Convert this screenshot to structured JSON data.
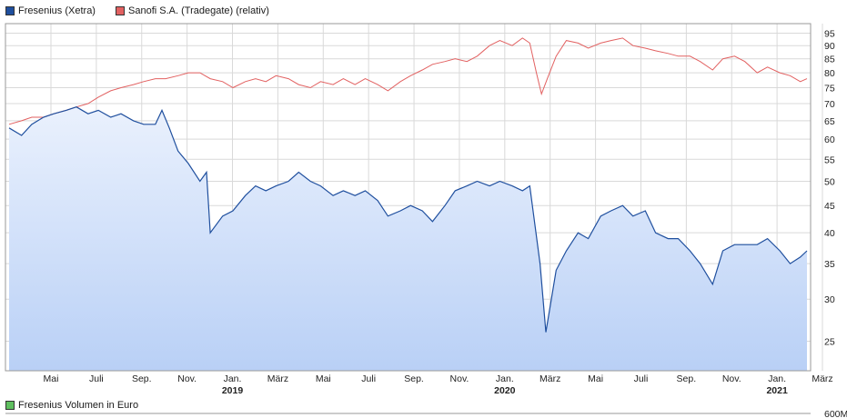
{
  "legend": {
    "series1": "Fresenius (Xetra)",
    "series2": "Sanofi S.A. (Tradegate) (relativ)",
    "volume": "Fresenius Volumen in Euro"
  },
  "colors": {
    "fresenius": "#1f4f9e",
    "sanofi": "#e26161",
    "volume": "#5fbf5f",
    "fill_top": "#eaf1fd",
    "fill_bottom": "#b9d0f6",
    "grid": "#d9d9d9"
  },
  "chart_data": {
    "type": "line",
    "scale": "log",
    "ylim": [
      22,
      99
    ],
    "y_ticks": [
      25,
      30,
      35,
      40,
      45,
      50,
      55,
      60,
      65,
      70,
      75,
      80,
      85,
      90,
      95
    ],
    "x_ticks": [
      {
        "label": "Mai",
        "year": ""
      },
      {
        "label": "Juli",
        "year": ""
      },
      {
        "label": "Sep.",
        "year": ""
      },
      {
        "label": "Nov.",
        "year": ""
      },
      {
        "label": "Jan.",
        "year": "2019"
      },
      {
        "label": "März",
        "year": ""
      },
      {
        "label": "Mai",
        "year": ""
      },
      {
        "label": "Juli",
        "year": ""
      },
      {
        "label": "Sep.",
        "year": ""
      },
      {
        "label": "Nov.",
        "year": ""
      },
      {
        "label": "Jan.",
        "year": "2020"
      },
      {
        "label": "März",
        "year": ""
      },
      {
        "label": "Mai",
        "year": ""
      },
      {
        "label": "Juli",
        "year": ""
      },
      {
        "label": "Sep.",
        "year": ""
      },
      {
        "label": "Nov.",
        "year": ""
      },
      {
        "label": "Jan.",
        "year": "2021"
      },
      {
        "label": "März",
        "year": ""
      }
    ],
    "series": [
      {
        "name": "Fresenius (Xetra)",
        "points": [
          [
            "2018-03-15",
            63
          ],
          [
            "2018-04-01",
            61
          ],
          [
            "2018-04-15",
            64
          ],
          [
            "2018-05-01",
            66
          ],
          [
            "2018-05-15",
            67
          ],
          [
            "2018-06-01",
            68
          ],
          [
            "2018-06-15",
            69
          ],
          [
            "2018-07-01",
            67
          ],
          [
            "2018-07-15",
            68
          ],
          [
            "2018-08-01",
            66
          ],
          [
            "2018-08-15",
            67
          ],
          [
            "2018-09-01",
            65
          ],
          [
            "2018-09-15",
            64
          ],
          [
            "2018-10-01",
            64
          ],
          [
            "2018-10-10",
            68
          ],
          [
            "2018-10-20",
            63
          ],
          [
            "2018-11-01",
            57
          ],
          [
            "2018-11-15",
            54
          ],
          [
            "2018-12-01",
            50
          ],
          [
            "2018-12-10",
            52
          ],
          [
            "2018-12-15",
            40
          ],
          [
            "2019-01-01",
            43
          ],
          [
            "2019-01-15",
            44
          ],
          [
            "2019-02-01",
            47
          ],
          [
            "2019-02-15",
            49
          ],
          [
            "2019-03-01",
            48
          ],
          [
            "2019-03-15",
            49
          ],
          [
            "2019-04-01",
            50
          ],
          [
            "2019-04-15",
            52
          ],
          [
            "2019-05-01",
            50
          ],
          [
            "2019-05-15",
            49
          ],
          [
            "2019-06-01",
            47
          ],
          [
            "2019-06-15",
            48
          ],
          [
            "2019-07-01",
            47
          ],
          [
            "2019-07-15",
            48
          ],
          [
            "2019-08-01",
            46
          ],
          [
            "2019-08-15",
            43
          ],
          [
            "2019-09-01",
            44
          ],
          [
            "2019-09-15",
            45
          ],
          [
            "2019-10-01",
            44
          ],
          [
            "2019-10-15",
            42
          ],
          [
            "2019-11-01",
            45
          ],
          [
            "2019-11-15",
            48
          ],
          [
            "2019-12-01",
            49
          ],
          [
            "2019-12-15",
            50
          ],
          [
            "2020-01-01",
            49
          ],
          [
            "2020-01-15",
            50
          ],
          [
            "2020-02-01",
            49
          ],
          [
            "2020-02-15",
            48
          ],
          [
            "2020-02-25",
            49
          ],
          [
            "2020-03-10",
            35
          ],
          [
            "2020-03-18",
            26
          ],
          [
            "2020-04-01",
            34
          ],
          [
            "2020-04-15",
            37
          ],
          [
            "2020-05-01",
            40
          ],
          [
            "2020-05-15",
            39
          ],
          [
            "2020-06-01",
            43
          ],
          [
            "2020-06-15",
            44
          ],
          [
            "2020-07-01",
            45
          ],
          [
            "2020-07-15",
            43
          ],
          [
            "2020-08-01",
            44
          ],
          [
            "2020-08-15",
            40
          ],
          [
            "2020-09-01",
            39
          ],
          [
            "2020-09-15",
            39
          ],
          [
            "2020-10-01",
            37
          ],
          [
            "2020-10-15",
            35
          ],
          [
            "2020-11-01",
            32
          ],
          [
            "2020-11-15",
            37
          ],
          [
            "2020-12-01",
            38
          ],
          [
            "2020-12-15",
            38
          ],
          [
            "2021-01-01",
            38
          ],
          [
            "2021-01-15",
            39
          ],
          [
            "2021-02-01",
            37
          ],
          [
            "2021-02-15",
            35
          ],
          [
            "2021-03-01",
            36
          ],
          [
            "2021-03-10",
            37
          ]
        ]
      },
      {
        "name": "Sanofi S.A. (Tradegate) (relativ)",
        "points": [
          [
            "2018-03-15",
            64
          ],
          [
            "2018-04-01",
            65
          ],
          [
            "2018-04-15",
            66
          ],
          [
            "2018-05-01",
            66
          ],
          [
            "2018-05-15",
            67
          ],
          [
            "2018-06-01",
            68
          ],
          [
            "2018-06-15",
            69
          ],
          [
            "2018-07-01",
            70
          ],
          [
            "2018-07-15",
            72
          ],
          [
            "2018-08-01",
            74
          ],
          [
            "2018-08-15",
            75
          ],
          [
            "2018-09-01",
            76
          ],
          [
            "2018-09-15",
            77
          ],
          [
            "2018-10-01",
            78
          ],
          [
            "2018-10-15",
            78
          ],
          [
            "2018-11-01",
            79
          ],
          [
            "2018-11-15",
            80
          ],
          [
            "2018-12-01",
            80
          ],
          [
            "2018-12-15",
            78
          ],
          [
            "2019-01-01",
            77
          ],
          [
            "2019-01-15",
            75
          ],
          [
            "2019-02-01",
            77
          ],
          [
            "2019-02-15",
            78
          ],
          [
            "2019-03-01",
            77
          ],
          [
            "2019-03-15",
            79
          ],
          [
            "2019-04-01",
            78
          ],
          [
            "2019-04-15",
            76
          ],
          [
            "2019-05-01",
            75
          ],
          [
            "2019-05-15",
            77
          ],
          [
            "2019-06-01",
            76
          ],
          [
            "2019-06-15",
            78
          ],
          [
            "2019-07-01",
            76
          ],
          [
            "2019-07-15",
            78
          ],
          [
            "2019-08-01",
            76
          ],
          [
            "2019-08-15",
            74
          ],
          [
            "2019-09-01",
            77
          ],
          [
            "2019-09-15",
            79
          ],
          [
            "2019-10-01",
            81
          ],
          [
            "2019-10-15",
            83
          ],
          [
            "2019-11-01",
            84
          ],
          [
            "2019-11-15",
            85
          ],
          [
            "2019-12-01",
            84
          ],
          [
            "2019-12-15",
            86
          ],
          [
            "2020-01-01",
            90
          ],
          [
            "2020-01-15",
            92
          ],
          [
            "2020-02-01",
            90
          ],
          [
            "2020-02-15",
            93
          ],
          [
            "2020-02-25",
            91
          ],
          [
            "2020-03-05",
            80
          ],
          [
            "2020-03-12",
            73
          ],
          [
            "2020-03-20",
            78
          ],
          [
            "2020-04-01",
            86
          ],
          [
            "2020-04-15",
            92
          ],
          [
            "2020-05-01",
            91
          ],
          [
            "2020-05-15",
            89
          ],
          [
            "2020-06-01",
            91
          ],
          [
            "2020-06-15",
            92
          ],
          [
            "2020-07-01",
            93
          ],
          [
            "2020-07-15",
            90
          ],
          [
            "2020-08-01",
            89
          ],
          [
            "2020-08-15",
            88
          ],
          [
            "2020-09-01",
            87
          ],
          [
            "2020-09-15",
            86
          ],
          [
            "2020-10-01",
            86
          ],
          [
            "2020-10-15",
            84
          ],
          [
            "2020-11-01",
            81
          ],
          [
            "2020-11-15",
            85
          ],
          [
            "2020-12-01",
            86
          ],
          [
            "2020-12-15",
            84
          ],
          [
            "2021-01-01",
            80
          ],
          [
            "2021-01-15",
            82
          ],
          [
            "2021-02-01",
            80
          ],
          [
            "2021-02-15",
            79
          ],
          [
            "2021-03-01",
            77
          ],
          [
            "2021-03-10",
            78
          ]
        ]
      }
    ]
  },
  "volume_axis": {
    "top_label": "600M"
  }
}
